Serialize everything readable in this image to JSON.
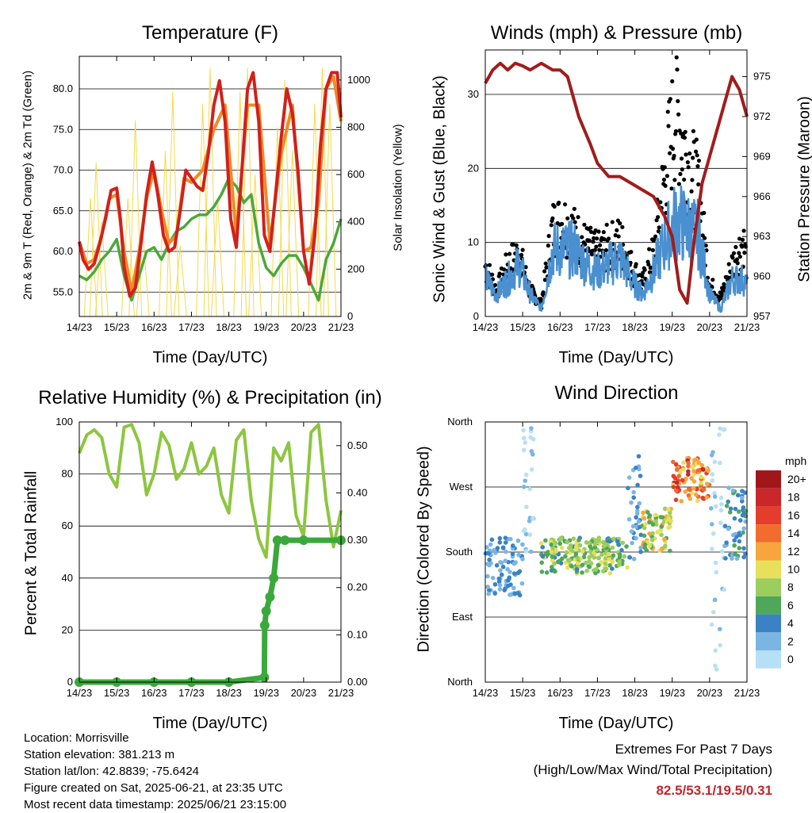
{
  "panels": {
    "temperature": {
      "title": "Temperature (F)",
      "xlabel": "Time (Day/UTC)",
      "ylabel_left": "2m & 9m T (Red, Orange) & 2m Td (Green)",
      "ylabel_right": "Solar Insolation (Yellow)"
    },
    "winds": {
      "title": "Winds (mph) & Pressure (mb)",
      "xlabel": "Time (Day/UTC)",
      "ylabel_left": "Sonic Wind & Gust (Blue, Black)",
      "ylabel_right": "Station Pressure (Maroon)"
    },
    "humidity": {
      "title": "Relative Humidity (%) & Precipitation (in)",
      "xlabel": "Time (Day/UTC)",
      "ylabel_left": "Percent & Total Rainfall"
    },
    "direction": {
      "title": "Wind Direction",
      "xlabel": "Time (Day/UTC)",
      "ylabel_left": "Direction (Colored By Speed)",
      "legend_title": "mph"
    }
  },
  "colors": {
    "temp_2m": "#d0211c",
    "temp_9m": "#f08a24",
    "dewpoint": "#4aa83a",
    "solar": "#f5d94a",
    "wind": "#4a90d0",
    "gust": "#000000",
    "pressure": "#a01c1c",
    "rh": "#8cc63f",
    "precip": "#3aa83a",
    "extremes_text": "#c0272d"
  },
  "info": {
    "location": "Location: Morrisville",
    "elevation": "Station elevation: 381.213 m",
    "latlon": "Station lat/lon: 42.8839; -75.6424",
    "created": "Figure created on Sat, 2025-06-21, at 23:35 UTC",
    "recent": "Most recent data timestamp: 2025/06/21 23:15:00"
  },
  "extremes": {
    "line1": "Extremes For Past 7 Days",
    "line2": "(High/Low/Max Wind/Total Precipitation)",
    "values": "82.5/53.1/19.5/0.31"
  },
  "chart_data": [
    {
      "type": "line",
      "title": "Temperature (F)",
      "xlabel": "Time (Day/UTC)",
      "ylabel": "2m & 9m T (Red, Orange) & 2m Td (Green)",
      "y2label": "Solar Insolation (Yellow)",
      "x_ticks": [
        "14/23",
        "15/23",
        "16/23",
        "17/23",
        "18/23",
        "19/23",
        "20/23",
        "21/23"
      ],
      "ylim": [
        52,
        84
      ],
      "y_ticks": [
        55.0,
        60.0,
        65.0,
        70.0,
        75.0,
        80.0
      ],
      "y_tick_labels": [
        "55.0",
        "60.0",
        "65.0",
        "70.0",
        "75.0",
        "80.0"
      ],
      "y2lim": [
        0,
        1100
      ],
      "y2_ticks": [
        0,
        200,
        400,
        600,
        800,
        1000
      ],
      "grid": true,
      "series": [
        {
          "key": "t2m",
          "color": "#d0211c",
          "x": [
            0,
            0.1,
            0.25,
            0.4,
            0.55,
            0.7,
            0.85,
            1.0,
            1.1,
            1.2,
            1.35,
            1.5,
            1.65,
            1.8,
            1.95,
            2.1,
            2.25,
            2.4,
            2.55,
            2.7,
            2.85,
            3.0,
            3.15,
            3.3,
            3.45,
            3.6,
            3.75,
            3.9,
            4.05,
            4.2,
            4.35,
            4.5,
            4.65,
            4.8,
            4.95,
            5.1,
            5.25,
            5.4,
            5.55,
            5.7,
            5.85,
            6.0,
            6.15,
            6.3,
            6.45,
            6.6,
            6.75,
            6.9,
            7.0
          ],
          "y": [
            61.2,
            59,
            57.8,
            58.5,
            61,
            64,
            67.5,
            67.8,
            64,
            58,
            54.5,
            55.5,
            61,
            67,
            71,
            67,
            62,
            60,
            60.5,
            65,
            70,
            69,
            68,
            67.5,
            72,
            78,
            81,
            76,
            64,
            60.5,
            70,
            80,
            82,
            76,
            62,
            60,
            67,
            74,
            80,
            77,
            70,
            60,
            56,
            62,
            73,
            80,
            82,
            82,
            76.5
          ]
        },
        {
          "key": "t9m",
          "color": "#f08a24",
          "x": [
            0,
            0.2,
            0.4,
            0.6,
            0.8,
            1.0,
            1.2,
            1.4,
            1.6,
            1.8,
            2.0,
            2.2,
            2.4,
            2.6,
            2.8,
            3.0,
            3.3,
            3.6,
            3.9,
            4.2,
            4.5,
            4.8,
            5.1,
            5.4,
            5.7,
            6.0,
            6.2,
            6.4,
            6.6,
            6.8,
            7.0
          ],
          "y": [
            61.2,
            58.5,
            59,
            62,
            66.5,
            67,
            60,
            55,
            60,
            66.5,
            70,
            65,
            61,
            62,
            69,
            68.5,
            70,
            75,
            78,
            62,
            78,
            78,
            61,
            72,
            78,
            60,
            60.5,
            66,
            80,
            81.5,
            76
          ]
        },
        {
          "key": "td2m",
          "color": "#4aa83a",
          "x": [
            0,
            0.2,
            0.4,
            0.6,
            0.8,
            1.0,
            1.2,
            1.4,
            1.6,
            1.8,
            2.0,
            2.2,
            2.4,
            2.6,
            2.8,
            3.0,
            3.2,
            3.4,
            3.6,
            3.8,
            4.0,
            4.2,
            4.4,
            4.6,
            4.8,
            5.0,
            5.2,
            5.4,
            5.6,
            5.8,
            6.0,
            6.2,
            6.4,
            6.6,
            6.8,
            7.0
          ],
          "y": [
            57,
            56.5,
            57.5,
            59,
            60,
            61.5,
            57,
            54,
            57,
            60,
            60.5,
            59,
            61,
            62.5,
            63,
            64,
            64.5,
            64.5,
            65.5,
            67,
            69,
            68,
            66,
            67,
            61,
            58,
            57,
            58.5,
            59.5,
            59.5,
            58,
            56,
            54,
            59,
            61,
            64
          ]
        },
        {
          "key": "solar",
          "color": "#f5d94a",
          "x": [
            0.3,
            0.45,
            0.6,
            1.3,
            1.5,
            1.7,
            2.3,
            2.5,
            2.7,
            3.3,
            3.5,
            3.7,
            4.3,
            4.5,
            4.7,
            5.3,
            5.5,
            5.7,
            6.3,
            6.5,
            6.7
          ],
          "y2": [
            500,
            650,
            400,
            500,
            830,
            350,
            700,
            950,
            300,
            900,
            1050,
            500,
            950,
            1050,
            600,
            800,
            1000,
            700,
            900,
            1050,
            900
          ]
        }
      ]
    },
    {
      "type": "line",
      "title": "Winds (mph) & Pressure (mb)",
      "xlabel": "Time (Day/UTC)",
      "ylabel": "Sonic Wind & Gust (Blue, Black)",
      "y2label": "Station Pressure (Maroon)",
      "x_ticks": [
        "14/23",
        "15/23",
        "16/23",
        "17/23",
        "18/23",
        "19/23",
        "20/23",
        "21/23"
      ],
      "ylim": [
        0,
        36
      ],
      "y_ticks": [
        0,
        10,
        20,
        30
      ],
      "y2lim": [
        957,
        977
      ],
      "y2_ticks": [
        957,
        960,
        963,
        966,
        969,
        972,
        975
      ],
      "grid": true,
      "series": [
        {
          "key": "pressure",
          "color": "#a01c1c",
          "x": [
            0,
            0.2,
            0.4,
            0.6,
            0.8,
            1.0,
            1.2,
            1.5,
            1.8,
            2.0,
            2.2,
            2.5,
            2.8,
            3.0,
            3.3,
            3.6,
            3.9,
            4.2,
            4.5,
            4.8,
            5.0,
            5.2,
            5.4,
            5.6,
            5.8,
            6.0,
            6.2,
            6.4,
            6.6,
            6.8,
            6.9,
            7.0
          ],
          "y2": [
            974.5,
            975.5,
            976,
            975.5,
            976,
            975.8,
            975.5,
            976,
            975.5,
            975.5,
            975,
            972,
            970,
            968.5,
            967.5,
            967.5,
            967,
            966.5,
            966,
            964.5,
            963,
            959,
            958,
            963,
            967,
            969,
            971,
            973,
            975,
            974,
            973,
            972
          ]
        },
        {
          "key": "wind",
          "color": "#4a90d0",
          "x": [
            0,
            0.3,
            0.6,
            0.9,
            1.2,
            1.5,
            1.8,
            2.1,
            2.4,
            2.7,
            3.0,
            3.3,
            3.6,
            3.9,
            4.2,
            4.5,
            4.8,
            5.1,
            5.4,
            5.7,
            6.0,
            6.3,
            6.6,
            6.9,
            7.0
          ],
          "y": [
            5,
            3,
            5,
            7,
            3,
            1,
            9,
            9,
            9,
            7,
            6,
            7,
            8,
            5,
            3,
            6,
            10,
            13,
            12,
            11,
            3,
            1,
            5,
            5,
            4
          ]
        },
        {
          "key": "gust",
          "color": "#000000",
          "x": [
            0,
            0.3,
            0.6,
            0.9,
            1.2,
            1.5,
            1.8,
            2.1,
            2.4,
            2.7,
            3.0,
            3.3,
            3.6,
            3.9,
            4.2,
            4.5,
            4.8,
            5.1,
            5.4,
            5.7,
            6.0,
            6.3,
            6.6,
            6.9,
            7.0
          ],
          "y": [
            8,
            4,
            8,
            10,
            4,
            2,
            14,
            15,
            13,
            11,
            10,
            11,
            12,
            8,
            5,
            10,
            22,
            33,
            25,
            20,
            5,
            3,
            8,
            12,
            8
          ]
        }
      ]
    },
    {
      "type": "line",
      "title": "Relative Humidity (%) & Precipitation (in)",
      "xlabel": "Time (Day/UTC)",
      "ylabel": "Percent & Total Rainfall",
      "x_ticks": [
        "14/23",
        "15/23",
        "16/23",
        "17/23",
        "18/23",
        "19/23",
        "20/23",
        "21/23"
      ],
      "ylim": [
        0,
        100
      ],
      "y_ticks": [
        0,
        20,
        40,
        60,
        80,
        100
      ],
      "y2lim": [
        0,
        0.55
      ],
      "y2_ticks": [
        0.0,
        0.1,
        0.2,
        0.3,
        0.4,
        0.5
      ],
      "y2_tick_labels": [
        "0.00",
        "0.10",
        "0.20",
        "0.30",
        "0.40",
        "0.50"
      ],
      "grid": true,
      "series": [
        {
          "key": "rh",
          "color": "#8cc63f",
          "x": [
            0,
            0.2,
            0.4,
            0.6,
            0.8,
            1.0,
            1.2,
            1.4,
            1.6,
            1.8,
            2.0,
            2.2,
            2.4,
            2.6,
            2.8,
            3.0,
            3.2,
            3.4,
            3.6,
            3.8,
            4.0,
            4.2,
            4.4,
            4.6,
            4.8,
            5.0,
            5.2,
            5.4,
            5.6,
            5.8,
            6.0,
            6.2,
            6.4,
            6.6,
            6.8,
            7.0
          ],
          "y": [
            88,
            95,
            97,
            94,
            80,
            75,
            98,
            99,
            92,
            72,
            80,
            96,
            91,
            78,
            82,
            92,
            80,
            83,
            90,
            72,
            65,
            93,
            97,
            70,
            55,
            48,
            90,
            85,
            92,
            64,
            56,
            96,
            99,
            70,
            52,
            66
          ]
        },
        {
          "key": "precip",
          "color": "#3aa83a",
          "x": [
            0,
            1,
            2,
            3,
            4,
            4.95,
            4.96,
            5.0,
            5.1,
            5.2,
            5.3,
            5.5,
            6.0,
            7.0
          ],
          "y2": [
            0,
            0,
            0,
            0,
            0,
            0.01,
            0.12,
            0.15,
            0.18,
            0.22,
            0.3,
            0.3,
            0.3,
            0.3
          ]
        }
      ]
    },
    {
      "type": "scatter",
      "title": "Wind Direction",
      "xlabel": "Time (Day/UTC)",
      "ylabel": "Direction (Colored By Speed)",
      "x_ticks": [
        "14/23",
        "15/23",
        "16/23",
        "17/23",
        "18/23",
        "19/23",
        "20/23",
        "21/23"
      ],
      "y_tick_labels": [
        "North",
        "East",
        "South",
        "West",
        "North"
      ],
      "ylim": [
        0,
        360
      ],
      "grid": true,
      "legend": {
        "title": "mph",
        "placement": "right",
        "labels": [
          "20+",
          "18",
          "16",
          "14",
          "12",
          "10",
          "8",
          "6",
          "4",
          "2",
          "0"
        ],
        "colors": [
          "#a1161b",
          "#c9272a",
          "#e53d2d",
          "#f26b2f",
          "#f8a53f",
          "#e8e05a",
          "#9ccd5d",
          "#4fa75a",
          "#3b82c4",
          "#7ab6e4",
          "#b7e0f6"
        ]
      },
      "clusters": [
        {
          "x0": 0,
          "x1": 1,
          "dir": [
            120,
            200
          ],
          "spd": [
            2,
            6
          ]
        },
        {
          "x0": 1,
          "x1": 1.3,
          "dir": [
            180,
            355
          ],
          "spd": [
            0,
            3
          ]
        },
        {
          "x0": 1.5,
          "x1": 3.8,
          "dir": [
            150,
            200
          ],
          "spd": [
            5,
            11
          ]
        },
        {
          "x0": 3.8,
          "x1": 4.2,
          "dir": [
            170,
            320
          ],
          "spd": [
            2,
            6
          ]
        },
        {
          "x0": 4.2,
          "x1": 5.0,
          "dir": [
            180,
            240
          ],
          "spd": [
            6,
            13
          ]
        },
        {
          "x0": 5.0,
          "x1": 6.0,
          "dir": [
            250,
            310
          ],
          "spd": [
            10,
            19
          ]
        },
        {
          "x0": 6.0,
          "x1": 6.4,
          "dir": [
            0,
            360
          ],
          "spd": [
            0,
            3
          ]
        },
        {
          "x0": 6.4,
          "x1": 7.0,
          "dir": [
            170,
            270
          ],
          "spd": [
            3,
            7
          ]
        }
      ]
    }
  ]
}
